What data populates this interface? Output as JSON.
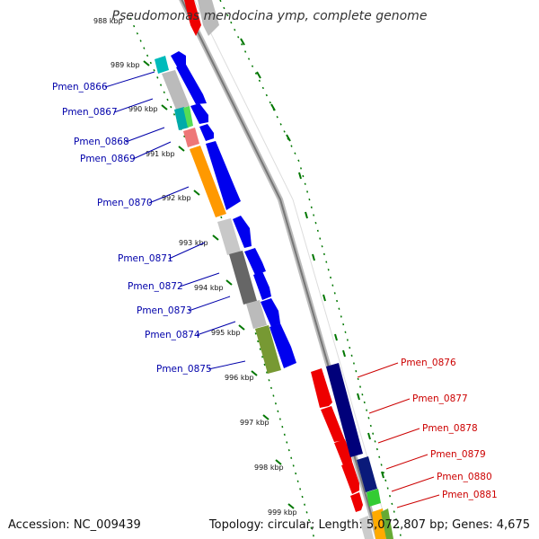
{
  "title": "Pseudomonas mendocina ymp, complete genome",
  "accession": "Accession: NC_009439",
  "summary": "Topology: circular; Length: 5,072,807 bp; Genes: 4,675",
  "kbp_ticks": [
    "988 kbp",
    "989 kbp",
    "990 kbp",
    "991 kbp",
    "992 kbp",
    "993 kbp",
    "994 kbp",
    "995 kbp",
    "996 kbp",
    "997 kbp",
    "998 kbp",
    "999 kbp"
  ],
  "left_genes": [
    "Pmen_0866",
    "Pmen_0867",
    "Pmen_0868",
    "Pmen_0869",
    "Pmen_0870",
    "Pmen_0871",
    "Pmen_0872",
    "Pmen_0873",
    "Pmen_0874",
    "Pmen_0875"
  ],
  "right_genes": [
    "Pmen_0876",
    "Pmen_0877",
    "Pmen_0878",
    "Pmen_0879",
    "Pmen_0880",
    "Pmen_0881"
  ],
  "colors": {
    "left_label": "#0000aa",
    "right_label": "#cc0000",
    "cds_forward": "#0000ee",
    "cds_reverse": "#ee0000",
    "dark_blue": "#00007a",
    "scale_dots": "#007700",
    "backbone": "#888888"
  }
}
